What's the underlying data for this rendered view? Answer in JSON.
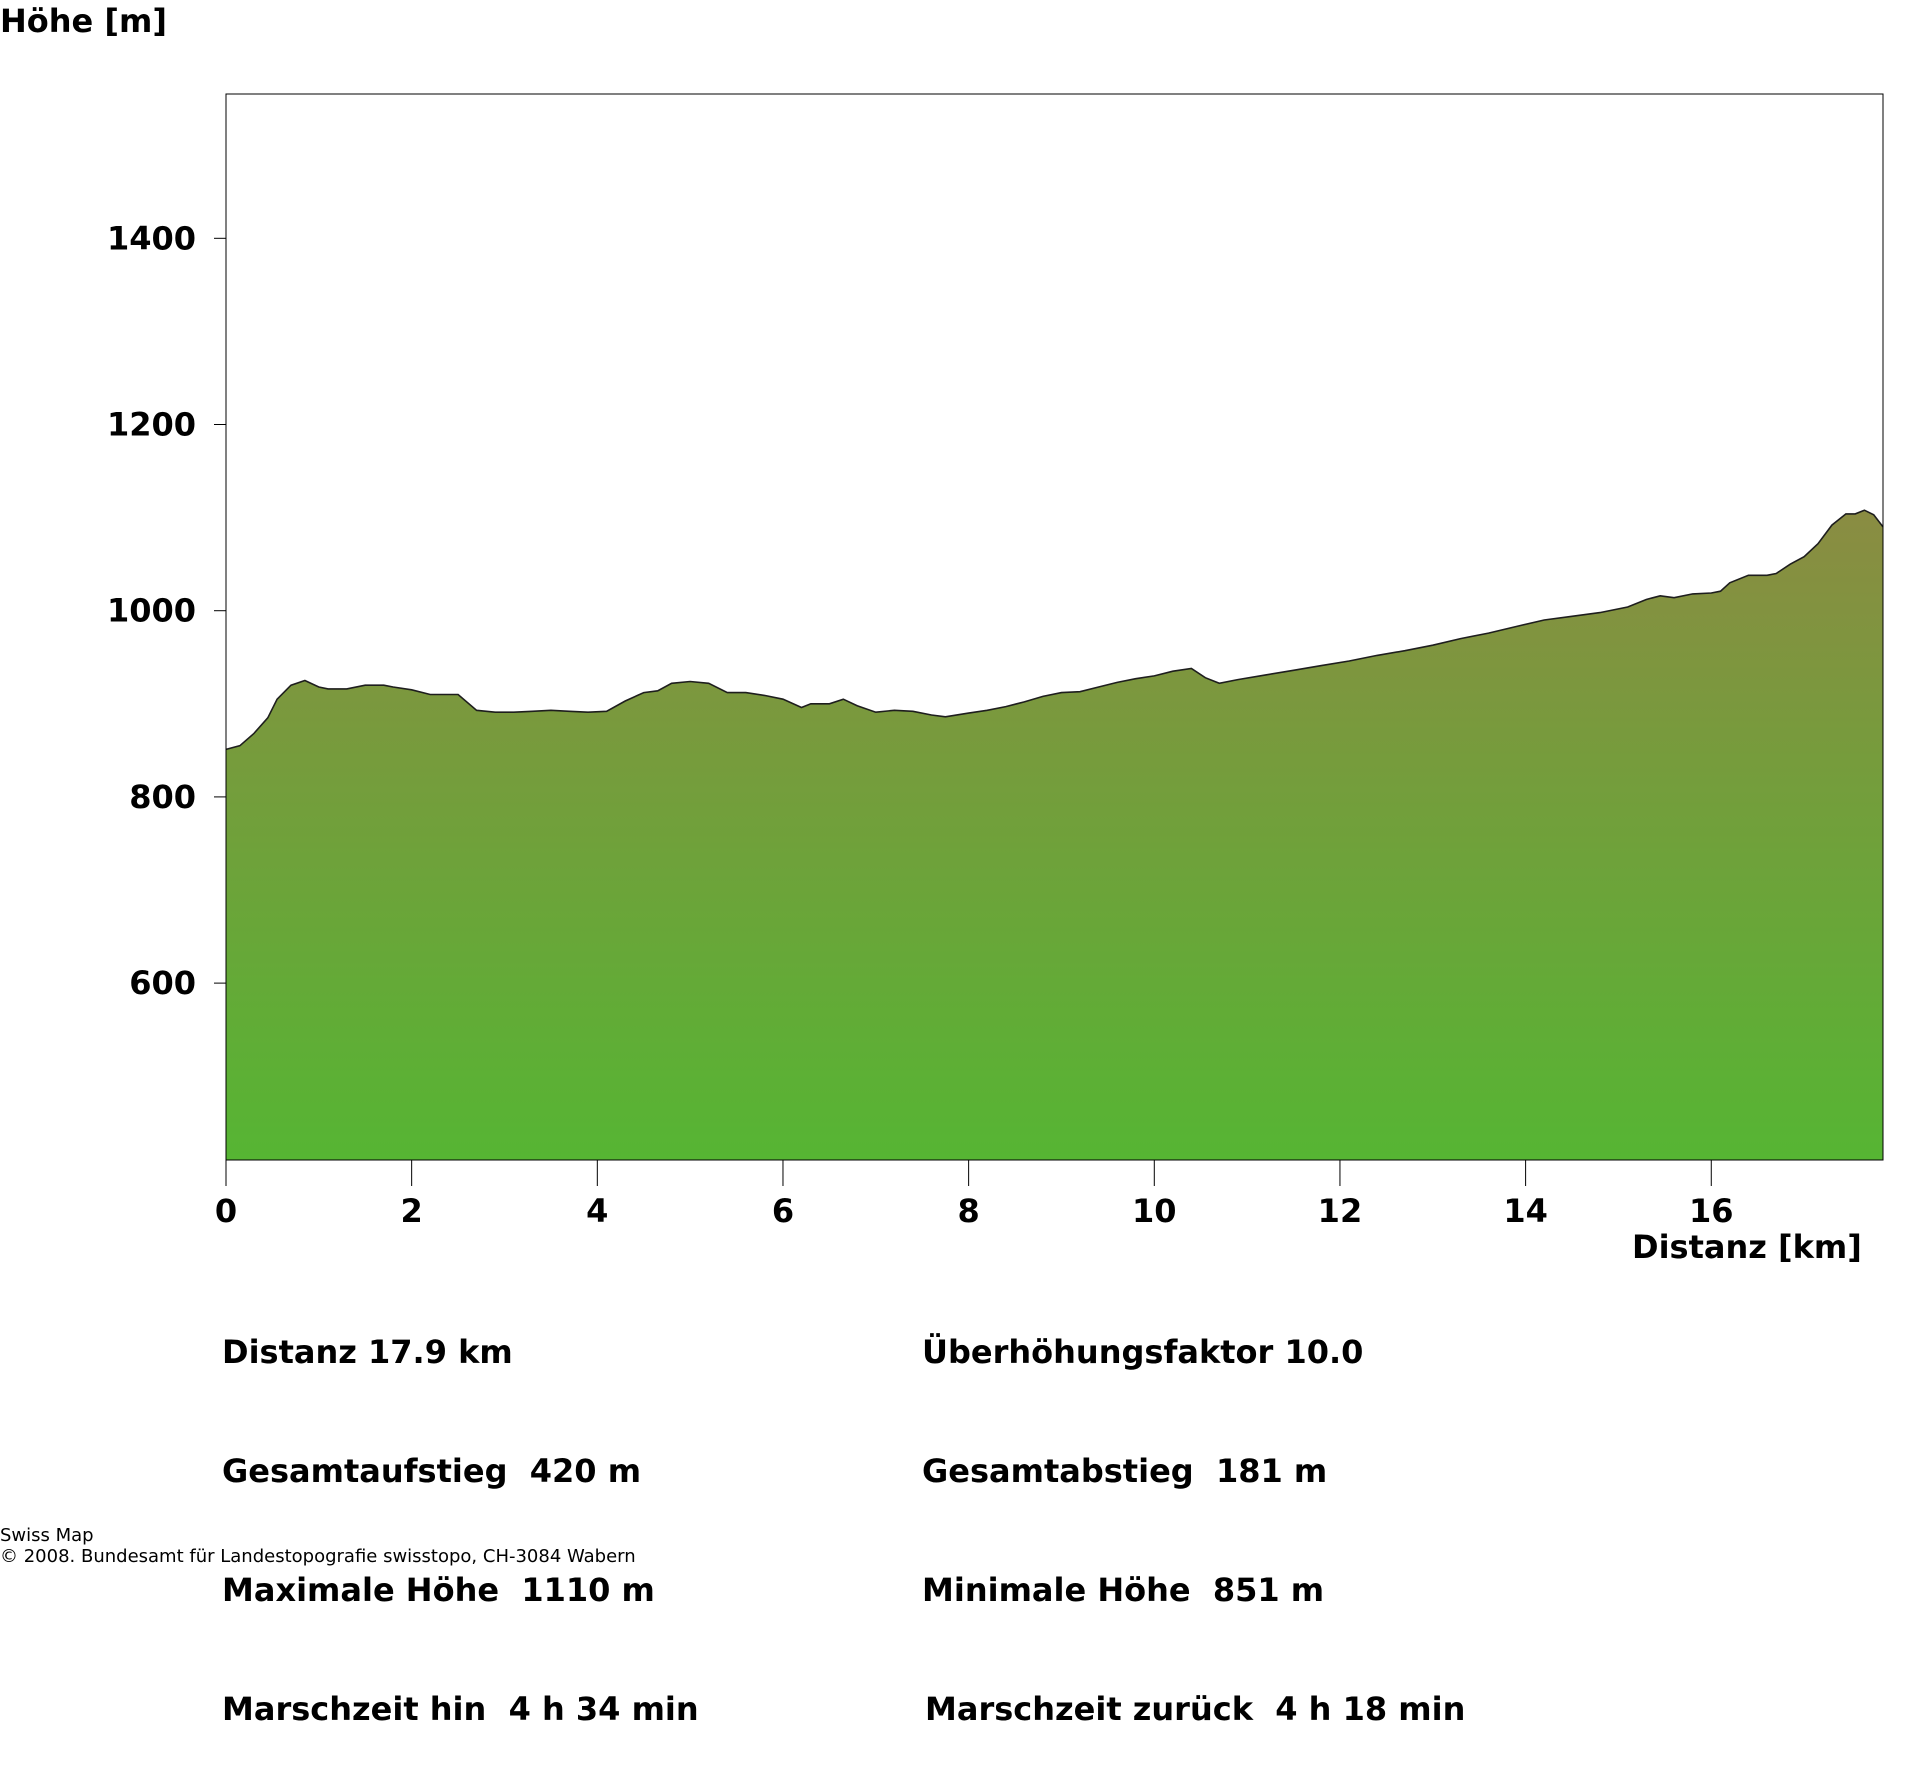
{
  "chart_data": {
    "type": "area",
    "ylabel": "Höhe [m]",
    "xlabel": "Distanz [km]",
    "xlim": [
      0,
      17.85
    ],
    "ylim": [
      410,
      1555
    ],
    "x_ticks": [
      0,
      2,
      4,
      6,
      8,
      10,
      12,
      14,
      16
    ],
    "x_tick_labels": [
      "0",
      "2",
      "4",
      "6",
      "8",
      "10",
      "12",
      "14",
      "16"
    ],
    "y_ticks": [
      600,
      800,
      1000,
      1200,
      1400
    ],
    "y_tick_labels": [
      "600",
      "800",
      "1000",
      "1200",
      "1400"
    ],
    "grid": false,
    "fill_color_top": "#8a8c42",
    "fill_color_bottom": "#56b533",
    "outline_color": "#1e1e1e",
    "x": [
      0,
      0.15,
      0.3,
      0.45,
      0.55,
      0.7,
      0.85,
      1.0,
      1.1,
      1.3,
      1.5,
      1.7,
      1.8,
      2.0,
      2.2,
      2.5,
      2.7,
      2.9,
      3.1,
      3.3,
      3.5,
      3.7,
      3.9,
      4.1,
      4.3,
      4.5,
      4.65,
      4.8,
      5.0,
      5.2,
      5.4,
      5.6,
      5.8,
      6.0,
      6.2,
      6.3,
      6.5,
      6.65,
      6.8,
      7.0,
      7.2,
      7.4,
      7.6,
      7.75,
      8.0,
      8.2,
      8.4,
      8.6,
      8.8,
      9.0,
      9.2,
      9.4,
      9.6,
      9.8,
      10.0,
      10.2,
      10.4,
      10.55,
      10.7,
      10.9,
      11.2,
      11.5,
      11.8,
      12.1,
      12.4,
      12.7,
      13.0,
      13.3,
      13.6,
      13.9,
      14.2,
      14.5,
      14.8,
      15.1,
      15.3,
      15.45,
      15.6,
      15.8,
      16.0,
      16.1,
      16.2,
      16.4,
      16.6,
      16.7,
      16.85,
      17.0,
      17.15,
      17.3,
      17.45,
      17.55,
      17.65,
      17.75,
      17.85
    ],
    "y": [
      851,
      855,
      868,
      885,
      905,
      920,
      925,
      918,
      916,
      916,
      920,
      920,
      918,
      915,
      910,
      910,
      893,
      891,
      891,
      892,
      893,
      892,
      891,
      892,
      903,
      912,
      914,
      922,
      924,
      922,
      912,
      912,
      909,
      905,
      896,
      900,
      900,
      905,
      898,
      891,
      893,
      892,
      888,
      886,
      890,
      893,
      897,
      902,
      908,
      912,
      913,
      918,
      923,
      927,
      930,
      935,
      938,
      928,
      922,
      926,
      931,
      936,
      941,
      946,
      952,
      957,
      963,
      970,
      976,
      983,
      990,
      994,
      998,
      1004,
      1012,
      1016,
      1014,
      1018,
      1019,
      1021,
      1030,
      1038,
      1038,
      1040,
      1050,
      1058,
      1072,
      1092,
      1104,
      1104,
      1108,
      1103,
      1090
    ]
  },
  "stats": {
    "left": [
      "Distanz 17.9 km",
      "Gesamtaufstieg  420 m",
      "Maximale Höhe  1110 m",
      "Marschzeit hin  4 h 34 min"
    ],
    "right": [
      "Überhöhungsfaktor 10.0",
      "Gesamtabstieg  181 m",
      "Minimale Höhe  851 m",
      "Marschzeit zurück  4 h 18 min"
    ]
  },
  "footer": {
    "line1": "Swiss Map",
    "line2": "© 2008. Bundesamt für Landestopografie swisstopo, CH-3084 Wabern"
  }
}
